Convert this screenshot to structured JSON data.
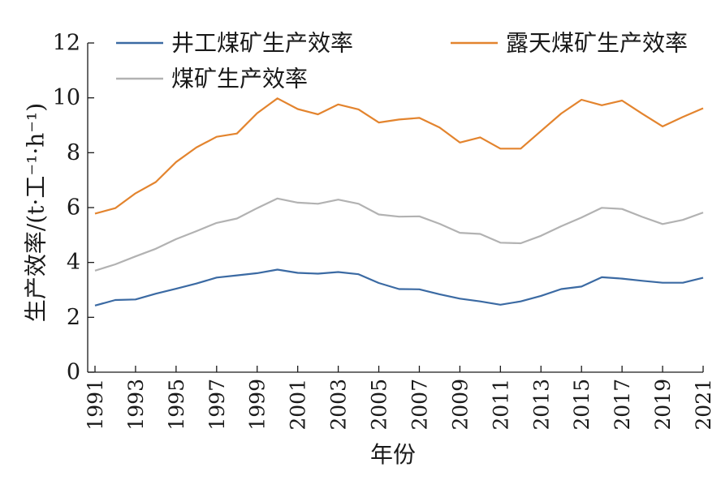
{
  "chart_data": {
    "type": "line",
    "title": "",
    "xlabel": "年份",
    "ylabel": "生产效率/(t·工⁻¹·h⁻¹)",
    "xlim": [
      1991,
      2021
    ],
    "ylim": [
      0,
      12
    ],
    "yticks": [
      0,
      2,
      4,
      6,
      8,
      10,
      12
    ],
    "xticks": [
      1991,
      1993,
      1995,
      1997,
      1999,
      2001,
      2003,
      2005,
      2007,
      2009,
      2011,
      2013,
      2015,
      2017,
      2019,
      2021
    ],
    "grid": false,
    "legend": "top",
    "x": [
      1991,
      1992,
      1993,
      1994,
      1995,
      1996,
      1997,
      1998,
      1999,
      2000,
      2001,
      2002,
      2003,
      2004,
      2005,
      2006,
      2007,
      2008,
      2009,
      2010,
      2011,
      2012,
      2013,
      2014,
      2015,
      2016,
      2017,
      2018,
      2019,
      2020,
      2021
    ],
    "series": [
      {
        "name": "井工煤矿生产效率",
        "color": "#3b6aa3",
        "values": [
          2.43,
          2.63,
          2.65,
          2.86,
          3.04,
          3.23,
          3.45,
          3.53,
          3.61,
          3.74,
          3.62,
          3.59,
          3.65,
          3.57,
          3.25,
          3.03,
          3.02,
          2.84,
          2.68,
          2.58,
          2.46,
          2.58,
          2.78,
          3.03,
          3.12,
          3.46,
          3.41,
          3.33,
          3.26,
          3.26,
          3.44
        ]
      },
      {
        "name": "露天煤矿生产效率",
        "color": "#e3842e",
        "values": [
          5.78,
          5.98,
          6.52,
          6.93,
          7.66,
          8.19,
          8.58,
          8.7,
          9.44,
          9.98,
          9.59,
          9.4,
          9.76,
          9.58,
          9.1,
          9.21,
          9.27,
          8.92,
          8.37,
          8.56,
          8.15,
          8.15,
          8.79,
          9.43,
          9.93,
          9.73,
          9.9,
          9.42,
          8.96,
          9.3,
          9.62
        ]
      },
      {
        "name": "煤矿生产效率",
        "color": "#b2b2b2",
        "values": [
          3.7,
          3.93,
          4.22,
          4.5,
          4.85,
          5.14,
          5.44,
          5.6,
          5.98,
          6.33,
          6.18,
          6.14,
          6.29,
          6.14,
          5.75,
          5.67,
          5.68,
          5.41,
          5.08,
          5.04,
          4.72,
          4.7,
          4.97,
          5.32,
          5.64,
          5.99,
          5.95,
          5.66,
          5.4,
          5.55,
          5.82
        ]
      }
    ]
  }
}
